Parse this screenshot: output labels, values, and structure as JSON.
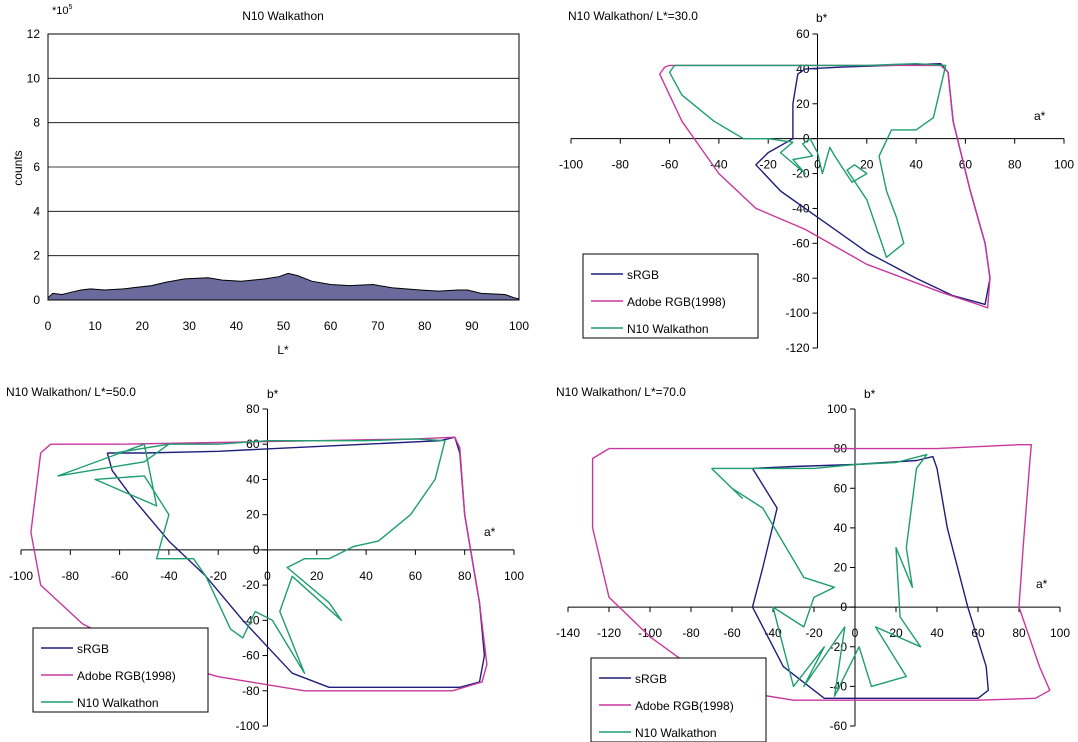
{
  "colors": {
    "srgb": "#1f1f7a",
    "adobe": "#c8379e",
    "n10": "#1e9e6e",
    "histogram_fill": "#6a6a9c",
    "axis": "#000000"
  },
  "chart_data": [
    {
      "type": "area",
      "title": "N10 Walkathon",
      "xlabel": "L*",
      "ylabel": "counts",
      "y_multiplier_label": "*10",
      "y_multiplier_exp": "5",
      "xlim": [
        0,
        100
      ],
      "ylim": [
        0,
        12
      ],
      "x_ticks": [
        0,
        10,
        20,
        30,
        40,
        50,
        60,
        70,
        80,
        90,
        100
      ],
      "y_ticks": [
        0,
        2,
        4,
        6,
        8,
        10,
        12
      ],
      "grid": true,
      "series": [
        {
          "x": [
            0,
            1,
            3,
            5,
            7,
            9,
            12,
            16,
            18,
            22,
            25,
            29,
            34,
            37,
            41,
            46,
            49,
            51,
            53,
            56,
            60,
            64,
            69,
            73,
            79,
            83,
            87,
            89,
            92,
            97,
            99,
            100
          ],
          "values": [
            0.1,
            0.3,
            0.25,
            0.35,
            0.45,
            0.5,
            0.45,
            0.5,
            0.55,
            0.65,
            0.8,
            0.95,
            1.0,
            0.9,
            0.85,
            0.95,
            1.05,
            1.2,
            1.1,
            0.85,
            0.7,
            0.65,
            0.7,
            0.55,
            0.45,
            0.4,
            0.45,
            0.45,
            0.3,
            0.25,
            0.1,
            0.05
          ]
        }
      ]
    },
    {
      "type": "line",
      "title": "N10 Walkathon/ L*=30.0",
      "xlabel": "a*",
      "ylabel": "b*",
      "xlim": [
        -100,
        100
      ],
      "ylim": [
        -120,
        60
      ],
      "x_ticks": [
        -100,
        -80,
        -60,
        -40,
        -20,
        0,
        20,
        40,
        60,
        80,
        100
      ],
      "y_ticks": [
        -120,
        -100,
        -80,
        -60,
        -40,
        -20,
        0,
        20,
        40,
        60
      ],
      "legend": "bottom-left",
      "series": [
        {
          "name": "sRGB",
          "x": [
            -5,
            10,
            30,
            50,
            53,
            55,
            62,
            68,
            70,
            68,
            55,
            40,
            20,
            0,
            -15,
            -25,
            -20,
            -10,
            -10,
            -8,
            -5
          ],
          "y": [
            40,
            41,
            42,
            43,
            38,
            10,
            -30,
            -60,
            -80,
            -95,
            -90,
            -80,
            -65,
            -45,
            -30,
            -15,
            -8,
            0,
            20,
            37,
            40
          ]
        },
        {
          "name": "Adobe RGB(1998)",
          "x": [
            -60,
            -40,
            -10,
            20,
            50,
            53,
            55,
            62,
            68,
            70,
            69,
            65,
            50,
            20,
            -5,
            -25,
            -40,
            -55,
            -64,
            -62,
            -60
          ],
          "y": [
            42,
            42,
            42,
            42,
            42,
            38,
            10,
            -30,
            -60,
            -80,
            -97,
            -95,
            -88,
            -72,
            -52,
            -40,
            -20,
            10,
            37,
            41,
            42
          ]
        },
        {
          "name": "N10 Walkathon",
          "x": [
            -58,
            -40,
            -20,
            0,
            20,
            40,
            52,
            50,
            47,
            40,
            30,
            25,
            28,
            32,
            35,
            28,
            20,
            12,
            15,
            20,
            14,
            7,
            5,
            2,
            0,
            -3,
            -6,
            -2,
            -10,
            -5,
            -15,
            -10,
            -20,
            -30,
            -42,
            -55,
            -60,
            -58
          ],
          "y": [
            42,
            42,
            42,
            42,
            42,
            43,
            42,
            30,
            12,
            5,
            5,
            -10,
            -30,
            -45,
            -60,
            -68,
            -35,
            -18,
            -15,
            -20,
            -25,
            -10,
            -5,
            -20,
            -8,
            0,
            -3,
            -10,
            -12,
            -20,
            -8,
            -2,
            0,
            0,
            10,
            25,
            38,
            42
          ]
        }
      ]
    },
    {
      "type": "line",
      "title": "N10 Walkathon/ L*=50.0",
      "xlabel": "a*",
      "ylabel": "b*",
      "xlim": [
        -100,
        100
      ],
      "ylim": [
        -100,
        80
      ],
      "x_ticks": [
        -100,
        -80,
        -60,
        -40,
        -20,
        0,
        20,
        40,
        60,
        80,
        100
      ],
      "y_ticks": [
        -100,
        -80,
        -60,
        -40,
        -20,
        0,
        20,
        40,
        60,
        80
      ],
      "legend": "bottom-left",
      "series": [
        {
          "name": "sRGB",
          "x": [
            -65,
            -50,
            -20,
            10,
            40,
            70,
            76,
            78,
            80,
            86,
            88,
            86,
            78,
            50,
            25,
            10,
            0,
            -10,
            -25,
            -40,
            -55,
            -63,
            -65
          ],
          "y": [
            55,
            55,
            56,
            58,
            60,
            62,
            64,
            55,
            20,
            -30,
            -60,
            -75,
            -78,
            -78,
            -78,
            -70,
            -55,
            -40,
            -15,
            5,
            30,
            45,
            55
          ]
        },
        {
          "name": "Adobe RGB(1998)",
          "x": [
            -88,
            -60,
            -20,
            20,
            60,
            76,
            78,
            80,
            86,
            89,
            87,
            75,
            50,
            15,
            -20,
            -50,
            -75,
            -92,
            -96,
            -92,
            -88
          ],
          "y": [
            60,
            60,
            61,
            62,
            63,
            64,
            58,
            20,
            -30,
            -65,
            -75,
            -80,
            -80,
            -80,
            -72,
            -60,
            -42,
            -20,
            10,
            55,
            60
          ]
        },
        {
          "name": "N10 Walkathon",
          "x": [
            -62,
            -40,
            -20,
            0,
            20,
            40,
            60,
            72,
            68,
            58,
            45,
            35,
            25,
            15,
            8,
            25,
            30,
            10,
            5,
            15,
            2,
            -5,
            -10,
            -15,
            -25,
            -30,
            -45,
            -40,
            -50,
            -70,
            -45,
            -50,
            -85,
            -50,
            -40,
            -62
          ],
          "y": [
            55,
            60,
            60,
            62,
            62,
            62,
            63,
            62,
            40,
            20,
            5,
            2,
            -5,
            -5,
            -10,
            -30,
            -40,
            -15,
            -35,
            -70,
            -40,
            -35,
            -50,
            -45,
            -15,
            -5,
            -5,
            20,
            42,
            40,
            25,
            60,
            42,
            50,
            60,
            55
          ]
        }
      ]
    },
    {
      "type": "line",
      "title": "N10 Walkathon/ L*=70.0",
      "xlabel": "a*",
      "ylabel": "b*",
      "xlim": [
        -140,
        100
      ],
      "ylim": [
        -60,
        100
      ],
      "x_ticks": [
        -140,
        -120,
        -100,
        -80,
        -60,
        -40,
        -20,
        0,
        20,
        40,
        60,
        80,
        100
      ],
      "y_ticks": [
        -60,
        -40,
        -20,
        0,
        20,
        40,
        60,
        80,
        100
      ],
      "legend": "bottom-left",
      "series": [
        {
          "name": "sRGB",
          "x": [
            -50,
            -30,
            0,
            30,
            38,
            40,
            45,
            55,
            64,
            65,
            60,
            20,
            -15,
            -35,
            -45,
            -50,
            -45,
            -38,
            -50
          ],
          "y": [
            70,
            71,
            72,
            74,
            76,
            70,
            40,
            0,
            -30,
            -42,
            -46,
            -46,
            -46,
            -30,
            -10,
            0,
            20,
            50,
            70
          ]
        },
        {
          "name": "Adobe RGB(1998)",
          "x": [
            -120,
            -80,
            -40,
            0,
            40,
            80,
            86,
            85,
            82,
            80,
            90,
            95,
            88,
            60,
            20,
            -30,
            -60,
            -80,
            -100,
            -120,
            -128,
            -128,
            -120
          ],
          "y": [
            80,
            80,
            80,
            80,
            80,
            82,
            82,
            70,
            30,
            0,
            -30,
            -42,
            -46,
            -47,
            -47,
            -47,
            -42,
            -30,
            -15,
            5,
            40,
            75,
            80
          ]
        },
        {
          "name": "N10 Walkathon",
          "x": [
            -70,
            -40,
            -20,
            0,
            20,
            35,
            30,
            25,
            28,
            20,
            22,
            32,
            10,
            25,
            8,
            2,
            -10,
            -5,
            -25,
            -15,
            -30,
            -40,
            -25,
            -20,
            -10,
            -25,
            -45,
            -60,
            -55,
            -70,
            -70
          ],
          "y": [
            70,
            70,
            70,
            72,
            73,
            77,
            70,
            30,
            10,
            30,
            -5,
            -20,
            -10,
            -35,
            -40,
            -20,
            -45,
            -10,
            -40,
            -20,
            -40,
            0,
            -10,
            5,
            10,
            15,
            50,
            60,
            55,
            70,
            70
          ]
        }
      ]
    }
  ]
}
